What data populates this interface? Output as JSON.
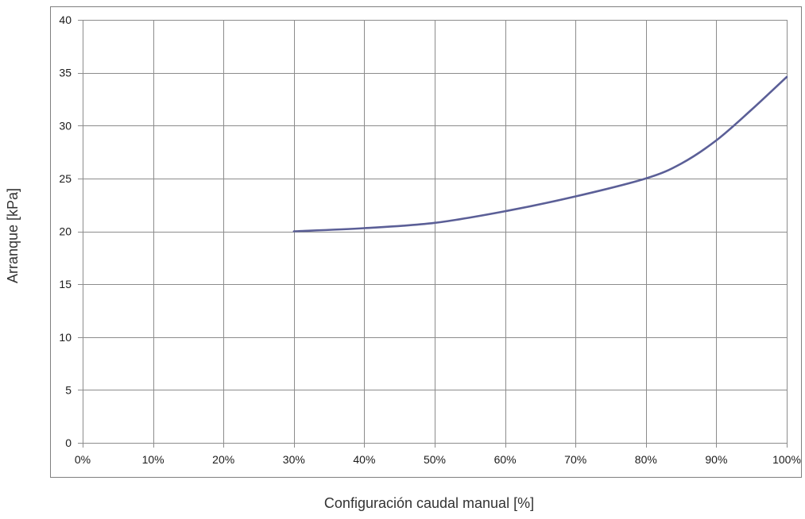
{
  "chart_data": {
    "type": "line",
    "title": "",
    "xlabel": "Configuración caudal manual [%]",
    "ylabel": "Arranque [kPa]",
    "xlim": [
      0,
      100
    ],
    "ylim": [
      0,
      40
    ],
    "x_ticks": [
      0,
      10,
      20,
      30,
      40,
      50,
      60,
      70,
      80,
      90,
      100
    ],
    "x_tick_labels": [
      "0%",
      "10%",
      "20%",
      "30%",
      "40%",
      "50%",
      "60%",
      "70%",
      "80%",
      "90%",
      "100%"
    ],
    "y_ticks": [
      0,
      5,
      10,
      15,
      20,
      25,
      30,
      35,
      40
    ],
    "y_tick_labels": [
      "0",
      "5",
      "10",
      "15",
      "20",
      "25",
      "30",
      "35",
      "40"
    ],
    "grid": true,
    "legend": "none",
    "series": [
      {
        "color": "#5b5f97",
        "x": [
          30,
          40,
          50,
          60,
          70,
          80,
          85,
          90,
          95,
          100
        ],
        "y": [
          20.0,
          20.3,
          20.8,
          21.9,
          23.3,
          25.0,
          26.4,
          28.6,
          31.5,
          34.6
        ]
      }
    ]
  }
}
